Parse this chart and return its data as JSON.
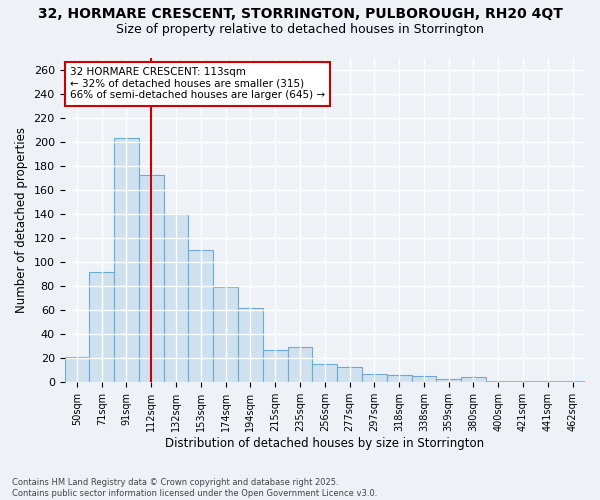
{
  "title_line1": "32, HORMARE CRESCENT, STORRINGTON, PULBOROUGH, RH20 4QT",
  "title_line2": "Size of property relative to detached houses in Storrington",
  "xlabel": "Distribution of detached houses by size in Storrington",
  "ylabel": "Number of detached properties",
  "categories": [
    "50sqm",
    "71sqm",
    "91sqm",
    "112sqm",
    "132sqm",
    "153sqm",
    "174sqm",
    "194sqm",
    "215sqm",
    "235sqm",
    "256sqm",
    "277sqm",
    "297sqm",
    "318sqm",
    "338sqm",
    "359sqm",
    "380sqm",
    "400sqm",
    "421sqm",
    "441sqm",
    "462sqm"
  ],
  "bar_values": [
    21,
    92,
    203,
    172,
    140,
    110,
    79,
    62,
    27,
    29,
    15,
    13,
    7,
    6,
    5,
    3,
    4,
    1,
    1,
    1,
    1
  ],
  "bar_color": "#cfe0ef",
  "bar_edge_color": "#6aaad4",
  "vline_color": "#cc0000",
  "vline_pos": 3.5,
  "annotation_text_line1": "32 HORMARE CRESCENT: 113sqm",
  "annotation_text_line2": "← 32% of detached houses are smaller (315)",
  "annotation_text_line3": "66% of semi-detached houses are larger (645) →",
  "annotation_fontsize": 7.5,
  "annotation_box_color": "#ffffff",
  "annotation_box_edge": "#cc0000",
  "ylim": [
    0,
    270
  ],
  "yticks": [
    0,
    20,
    40,
    60,
    80,
    100,
    120,
    140,
    160,
    180,
    200,
    220,
    240,
    260
  ],
  "footnote": "Contains HM Land Registry data © Crown copyright and database right 2025.\nContains public sector information licensed under the Open Government Licence v3.0.",
  "bg_color": "#eef2f7",
  "plot_bg_color": "#eef2f7",
  "grid_color": "#ffffff",
  "title_fontsize": 10,
  "subtitle_fontsize": 9
}
